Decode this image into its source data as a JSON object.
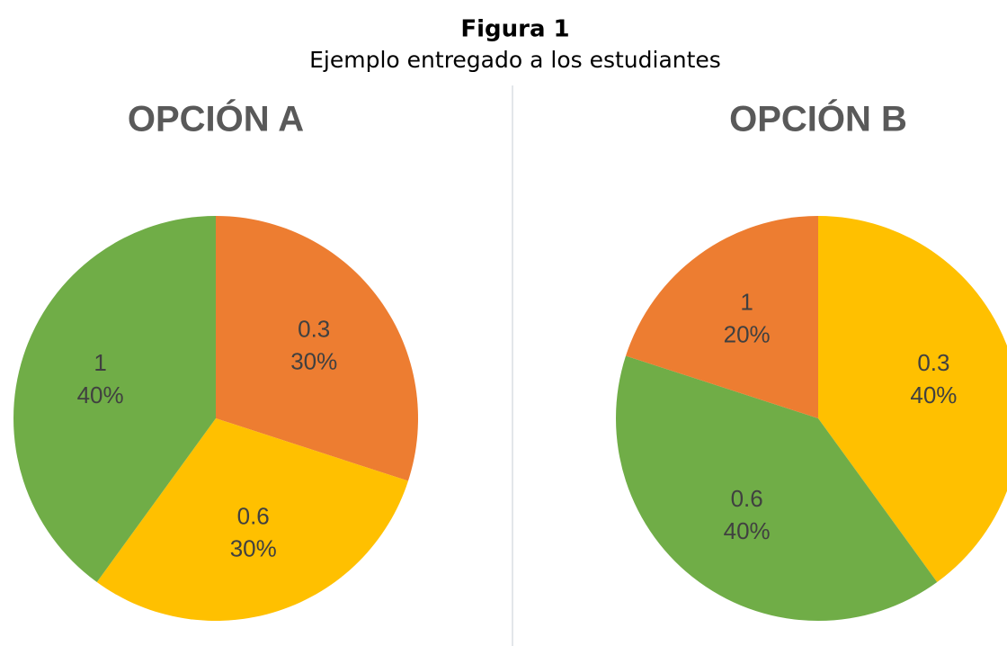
{
  "figure": {
    "title": "Figura 1",
    "subtitle": "Ejemplo entregado a los estudiantes"
  },
  "chart_data": [
    {
      "type": "pie",
      "title": "OPCIÓN A",
      "categories": [
        "0.3",
        "0.6",
        "1"
      ],
      "values": [
        30,
        30,
        40
      ],
      "value_labels": [
        "30%",
        "30%",
        "40%"
      ],
      "colors": [
        "#ED7D31",
        "#FFC000",
        "#70AD47"
      ]
    },
    {
      "type": "pie",
      "title": "OPCIÓN B",
      "categories": [
        "0.3",
        "0.6",
        "1"
      ],
      "values": [
        40,
        40,
        20
      ],
      "value_labels": [
        "40%",
        "40%",
        "20%"
      ],
      "colors": [
        "#FFC000",
        "#70AD47",
        "#ED7D31"
      ]
    }
  ]
}
